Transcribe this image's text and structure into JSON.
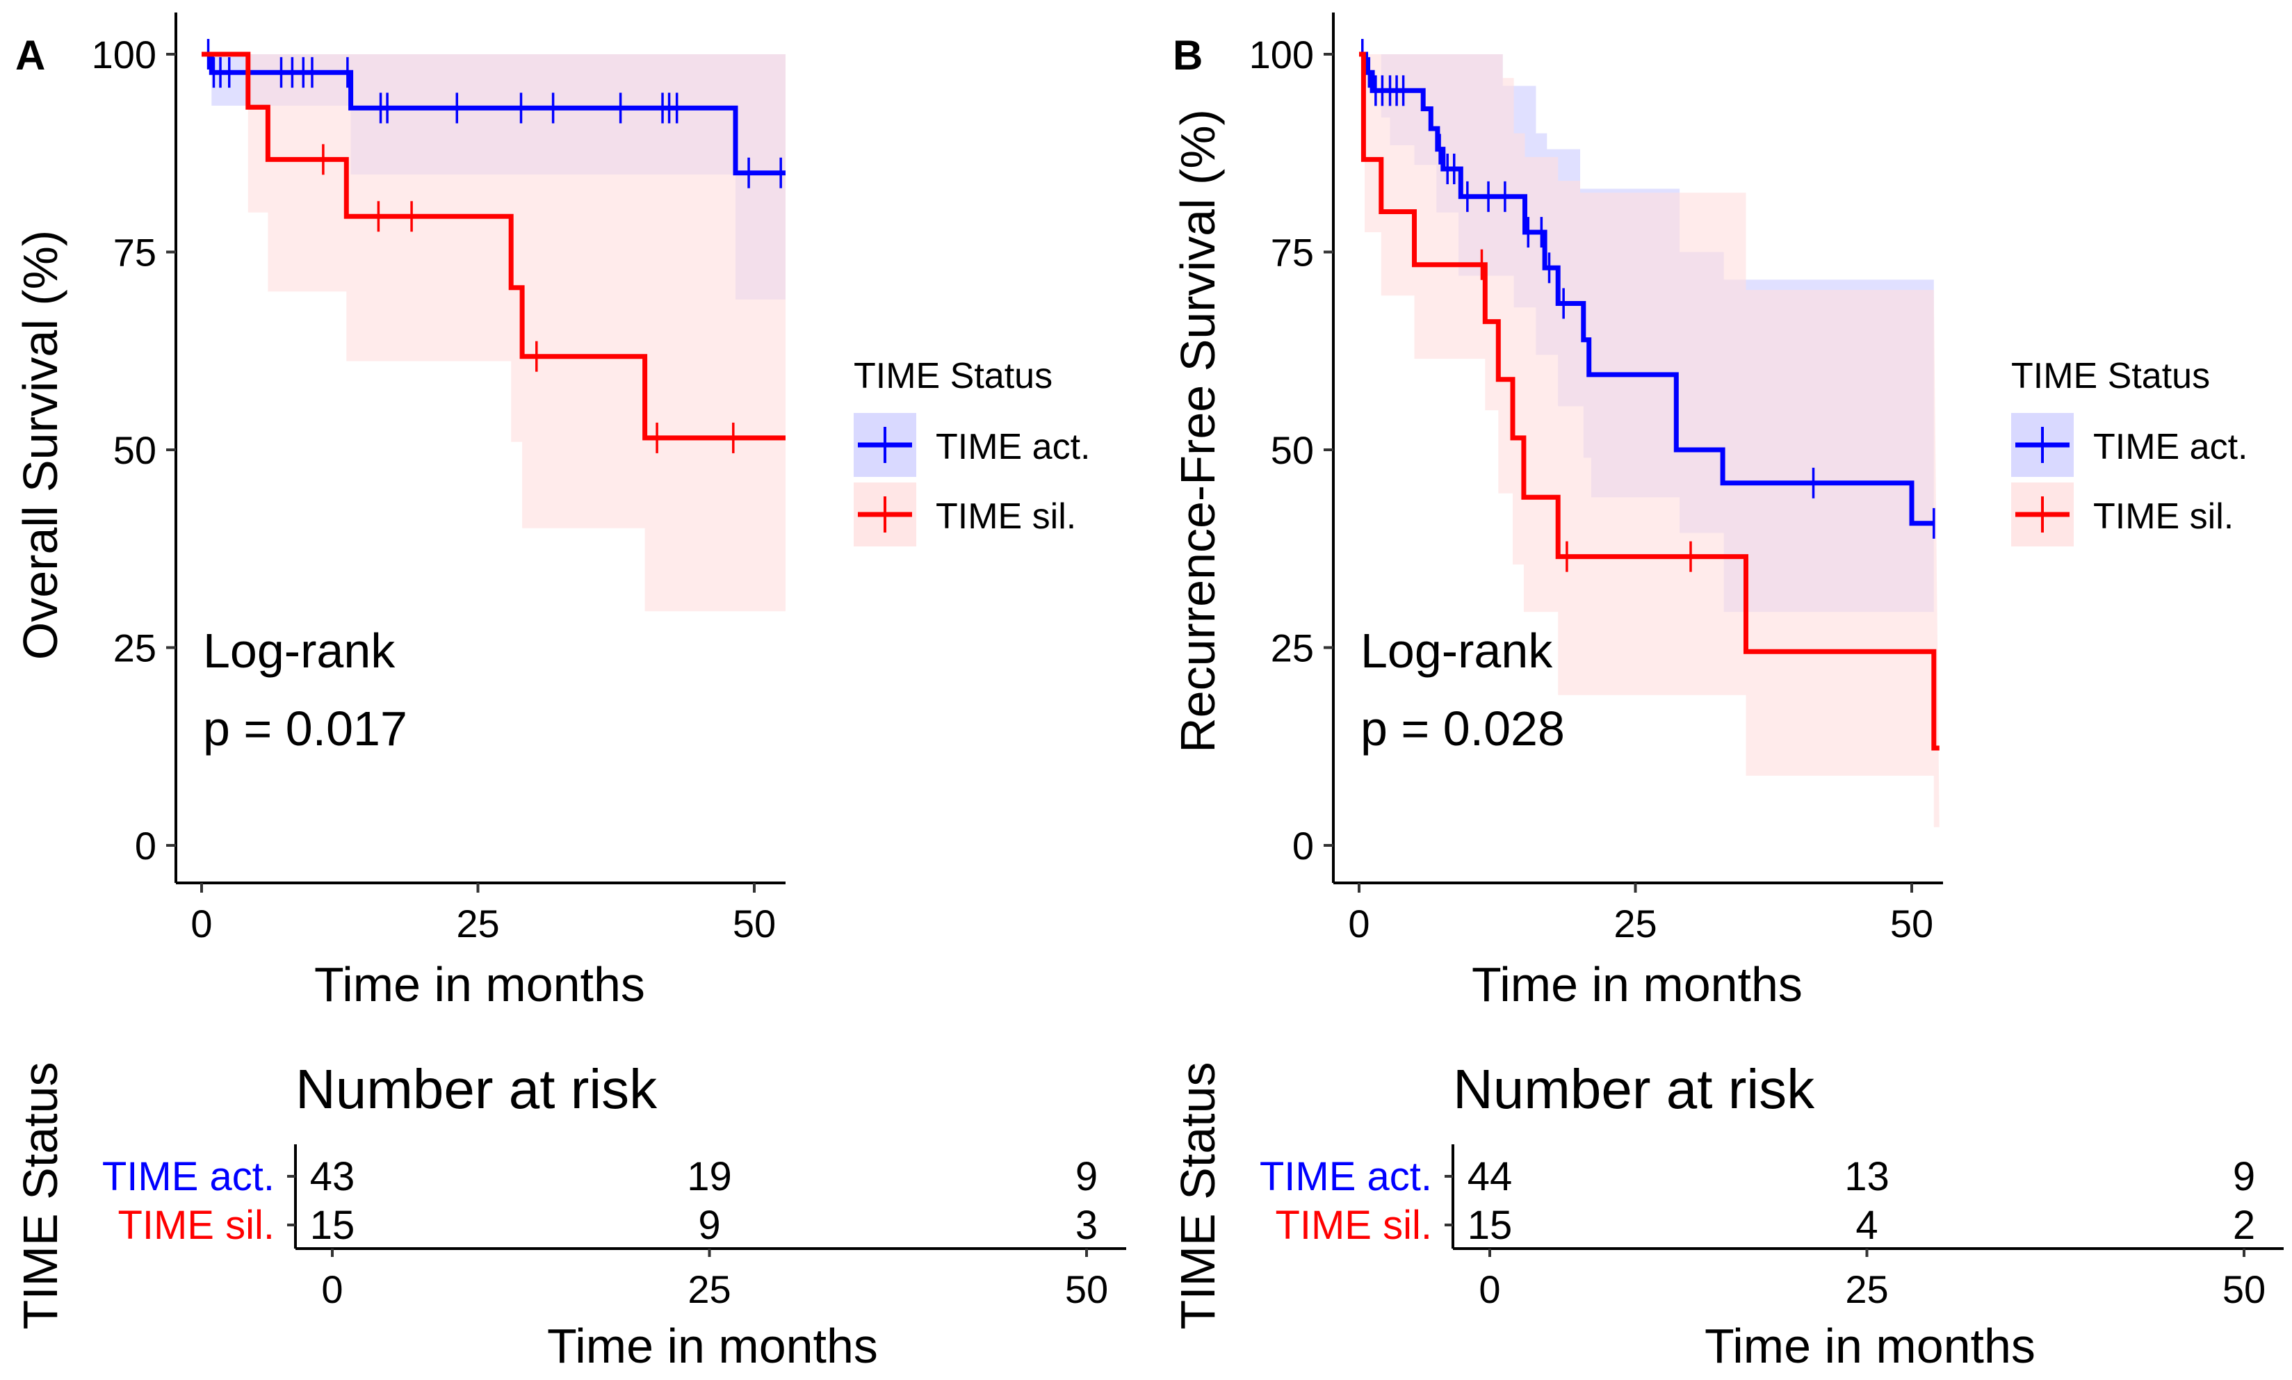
{
  "chart_data": [
    {
      "type": "line",
      "subtype": "kaplan-meier",
      "panel": "A",
      "ylabel": "Overall Survival (%)",
      "xlabel": "Time in months",
      "xlim": [
        -1,
        53
      ],
      "ylim": [
        0,
        100
      ],
      "xticks": [
        0,
        25,
        50
      ],
      "yticks": [
        0,
        25,
        50,
        75,
        100
      ],
      "annotation": [
        "Log-rank",
        "p = 0.017"
      ],
      "legend": {
        "title": "TIME Status",
        "entries": [
          "TIME act.",
          "TIME sil."
        ]
      },
      "series": [
        {
          "name": "TIME act.",
          "color": "#0000ff",
          "fill": "#ccccff",
          "steps": [
            [
              0,
              100
            ],
            [
              0.9,
              97.7
            ],
            [
              13.5,
              93.2
            ],
            [
              48.3,
              85.0
            ],
            [
              53,
              85.0
            ]
          ],
          "censor_times": [
            0.6,
            1.1,
            1.7,
            2.5,
            7.2,
            8.2,
            9.2,
            10.0,
            13.2,
            16.2,
            16.8,
            23.1,
            28.9,
            31.8,
            37.9,
            41.7,
            42.3,
            43.0,
            49.5,
            52.4
          ],
          "ci_upper": [
            [
              0,
              100
            ],
            [
              13.5,
              100
            ],
            [
              29,
              100
            ],
            [
              53,
              100
            ]
          ],
          "ci_lower": [
            [
              0,
              100
            ],
            [
              0.9,
              93.5
            ],
            [
              4,
              93.5
            ],
            [
              13.5,
              84.8
            ],
            [
              48.3,
              84.8
            ],
            [
              48.3,
              69.0
            ],
            [
              53,
              69.0
            ]
          ]
        },
        {
          "name": "TIME sil.",
          "color": "#ff0000",
          "fill": "#ffdddd",
          "steps": [
            [
              0,
              100
            ],
            [
              4.2,
              93.3
            ],
            [
              6.0,
              86.7
            ],
            [
              13.1,
              79.5
            ],
            [
              28.0,
              70.5
            ],
            [
              29.0,
              61.8
            ],
            [
              40.1,
              51.5
            ],
            [
              53,
              51.5
            ]
          ],
          "censor_times": [
            11.0,
            16.0,
            19.0,
            30.3,
            41.2,
            48.1
          ],
          "ci_upper": [
            [
              0,
              100
            ],
            [
              53,
              100
            ]
          ],
          "ci_lower": [
            [
              0,
              100
            ],
            [
              4.2,
              80.0
            ],
            [
              6.0,
              70.0
            ],
            [
              13.1,
              61.2
            ],
            [
              28.0,
              51.0
            ],
            [
              29.0,
              40.1
            ],
            [
              40.1,
              29.6
            ],
            [
              53,
              29.6
            ]
          ]
        }
      ],
      "risk_table": {
        "title": "Number at risk",
        "ylabel": "TIME Status",
        "xlabel": "Time in months",
        "times": [
          0,
          25,
          50
        ],
        "groups": [
          {
            "name": "TIME act.",
            "color": "#0000ff",
            "counts": [
              "43",
              "19",
              "9"
            ]
          },
          {
            "name": "TIME sil.",
            "color": "#ff0000",
            "counts": [
              "15",
              "9",
              "3"
            ]
          }
        ]
      }
    },
    {
      "type": "line",
      "subtype": "kaplan-meier",
      "panel": "B",
      "ylabel": "Recurrence-Free Survival (%)",
      "xlabel": "Time in months",
      "xlim": [
        -1,
        53
      ],
      "ylim": [
        0,
        100
      ],
      "xticks": [
        0,
        25,
        50
      ],
      "yticks": [
        0,
        25,
        50,
        75,
        100
      ],
      "annotation": [
        "Log-rank",
        "p = 0.028"
      ],
      "legend": {
        "title": "TIME Status",
        "entries": [
          "TIME act.",
          "TIME sil."
        ]
      },
      "series": [
        {
          "name": "TIME act.",
          "color": "#0000ff",
          "fill": "#ccccff",
          "steps": [
            [
              0,
              100
            ],
            [
              0.6,
              97.7
            ],
            [
              1.2,
              95.4
            ],
            [
              5.8,
              93.1
            ],
            [
              6.5,
              90.6
            ],
            [
              7.1,
              88.0
            ],
            [
              7.6,
              85.5
            ],
            [
              9.2,
              82.0
            ],
            [
              15.0,
              77.5
            ],
            [
              16.8,
              73.0
            ],
            [
              18.0,
              68.5
            ],
            [
              20.3,
              63.9
            ],
            [
              20.8,
              59.5
            ],
            [
              28.7,
              50.0
            ],
            [
              32.9,
              45.8
            ],
            [
              50.0,
              40.7
            ],
            [
              52,
              40.7
            ]
          ],
          "censor_times": [
            0.3,
            0.9,
            1.5,
            2.1,
            2.8,
            3.4,
            4.0,
            7.3,
            8.0,
            8.6,
            9.8,
            11.7,
            13.2,
            15.3,
            16.5,
            17.2,
            18.5,
            41.1,
            52.0
          ],
          "ci_upper": [
            [
              0,
              100
            ],
            [
              8,
              100
            ],
            [
              13,
              96.0
            ],
            [
              16,
              90.0
            ],
            [
              17,
              88.0
            ],
            [
              20,
              83.0
            ],
            [
              29,
              75.0
            ],
            [
              33,
              71.5
            ],
            [
              52,
              71.5
            ]
          ],
          "ci_lower": [
            [
              0,
              100
            ],
            [
              2,
              92.0
            ],
            [
              2.8,
              88.5
            ],
            [
              5,
              86.0
            ],
            [
              7,
              80.0
            ],
            [
              9,
              72.0
            ],
            [
              14,
              68.0
            ],
            [
              16,
              62.0
            ],
            [
              18,
              55.5
            ],
            [
              20.3,
              49.0
            ],
            [
              21,
              44.0
            ],
            [
              29,
              39.5
            ],
            [
              33,
              29.5
            ],
            [
              52,
              25.0
            ]
          ]
        },
        {
          "name": "TIME sil.",
          "color": "#ff0000",
          "fill": "#ffdddd",
          "steps": [
            [
              0,
              100
            ],
            [
              0.4,
              86.7
            ],
            [
              2.0,
              80.1
            ],
            [
              5.0,
              73.4
            ],
            [
              11.4,
              66.2
            ],
            [
              12.6,
              58.9
            ],
            [
              13.9,
              51.5
            ],
            [
              14.9,
              44.0
            ],
            [
              18.0,
              36.5
            ],
            [
              35.0,
              24.5
            ],
            [
              52.0,
              24.5
            ],
            [
              52.0,
              12.3
            ],
            [
              52.5,
              12.3
            ]
          ],
          "censor_times": [
            11.1,
            18.8,
            30.0
          ],
          "ci_upper": [
            [
              0,
              100
            ],
            [
              12,
              100
            ],
            [
              13,
              97.0
            ],
            [
              14,
              90.0
            ],
            [
              15,
              87.0
            ],
            [
              18,
              84.0
            ],
            [
              20,
              82.5
            ],
            [
              35,
              70.2
            ],
            [
              52,
              69.5
            ]
          ],
          "ci_lower": [
            [
              0,
              100
            ],
            [
              0.5,
              77.5
            ],
            [
              2.0,
              69.5
            ],
            [
              5.0,
              61.5
            ],
            [
              11.4,
              55.0
            ],
            [
              12.6,
              44.5
            ],
            [
              13.9,
              35.5
            ],
            [
              14.9,
              29.5
            ],
            [
              18.0,
              19.0
            ],
            [
              35.0,
              8.8
            ],
            [
              52.0,
              2.3
            ],
            [
              52.5,
              2.3
            ]
          ]
        }
      ],
      "risk_table": {
        "title": "Number at risk",
        "ylabel": "TIME Status",
        "xlabel": "Time in months",
        "times": [
          0,
          25,
          50
        ],
        "groups": [
          {
            "name": "TIME act.",
            "color": "#0000ff",
            "counts": [
              "44",
              "13",
              "9"
            ]
          },
          {
            "name": "TIME sil.",
            "color": "#ff0000",
            "counts": [
              "15",
              "4",
              "2"
            ]
          }
        ]
      }
    }
  ]
}
